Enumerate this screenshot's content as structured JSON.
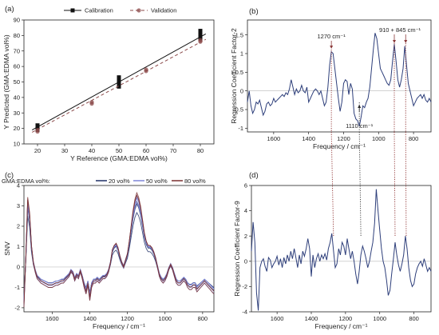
{
  "chart_data": [
    {
      "panel": "(a)",
      "type": "scatter",
      "xlabel": "Y Reference (GMA:EDMA vol%)",
      "ylabel": "Y Predicted (GMA:EDMA vol%)",
      "xlim": [
        15,
        85
      ],
      "ylim": [
        10,
        90
      ],
      "xticks": [
        20,
        30,
        40,
        50,
        60,
        70,
        80
      ],
      "yticks": [
        10,
        20,
        30,
        40,
        50,
        60,
        70,
        80,
        90
      ],
      "legend_position": "top-center",
      "series": [
        {
          "name": "Calibration",
          "color": "#111111",
          "marker": "square",
          "line": "solid",
          "fit": [
            [
              18,
              19
            ],
            [
              82,
              81
            ]
          ],
          "points": [
            [
              20,
              19
            ],
            [
              20,
              20
            ],
            [
              20,
              21
            ],
            [
              20,
              22
            ],
            [
              50,
              47
            ],
            [
              50,
              48
            ],
            [
              50,
              49
            ],
            [
              50,
              50
            ],
            [
              50,
              51
            ],
            [
              50,
              52
            ],
            [
              50,
              53
            ],
            [
              80,
              78
            ],
            [
              80,
              79
            ],
            [
              80,
              80
            ],
            [
              80,
              81
            ],
            [
              80,
              82
            ],
            [
              80,
              83
            ]
          ]
        },
        {
          "name": "Validation",
          "color": "#8b4a4a",
          "marker": "circle",
          "line": "dashed",
          "fit": [
            [
              18,
              17.5
            ],
            [
              82,
              77.5
            ]
          ],
          "points": [
            [
              20,
              18
            ],
            [
              20,
              19
            ],
            [
              40,
              36
            ],
            [
              40,
              37
            ],
            [
              60,
              57
            ],
            [
              60,
              58
            ],
            [
              80,
              76
            ],
            [
              80,
              77
            ]
          ]
        }
      ]
    },
    {
      "panel": "(b)",
      "type": "line",
      "xlabel": "Frequency / cm⁻¹",
      "ylabel": "Regression Coefficient Factor-2",
      "xlim": [
        1750,
        700
      ],
      "ylim": [
        -1.1,
        1.9
      ],
      "xticks": [
        1600,
        1400,
        1200,
        1000,
        800
      ],
      "yticks": [
        -1.0,
        -0.5,
        0.0,
        0.5,
        1.0,
        1.5
      ],
      "color": "#2d3e7a",
      "annotations": [
        {
          "text": "1270 cm⁻¹",
          "x": 1270
        },
        {
          "text": "910 + 845 cm⁻¹",
          "x": 878
        },
        {
          "text": "1110 cm⁻¹",
          "x": 1110
        }
      ],
      "x": [
        1750,
        1740,
        1730,
        1720,
        1710,
        1700,
        1690,
        1680,
        1670,
        1660,
        1650,
        1640,
        1630,
        1620,
        1610,
        1600,
        1590,
        1580,
        1570,
        1560,
        1550,
        1540,
        1530,
        1520,
        1510,
        1500,
        1490,
        1480,
        1470,
        1460,
        1450,
        1440,
        1430,
        1420,
        1410,
        1400,
        1390,
        1380,
        1370,
        1360,
        1350,
        1340,
        1330,
        1320,
        1310,
        1300,
        1290,
        1280,
        1270,
        1260,
        1250,
        1240,
        1230,
        1220,
        1210,
        1200,
        1190,
        1180,
        1170,
        1160,
        1150,
        1140,
        1130,
        1120,
        1110,
        1100,
        1090,
        1080,
        1070,
        1060,
        1050,
        1040,
        1030,
        1020,
        1010,
        1000,
        990,
        980,
        970,
        960,
        950,
        940,
        930,
        920,
        910,
        900,
        890,
        880,
        870,
        860,
        850,
        840,
        830,
        820,
        810,
        800,
        790,
        780,
        770,
        760,
        750,
        740,
        730,
        720,
        710,
        700
      ],
      "y": [
        -0.3,
        0.0,
        -0.4,
        -0.6,
        -0.5,
        -0.3,
        -0.35,
        -0.25,
        -0.45,
        -0.65,
        -0.55,
        -0.35,
        -0.3,
        -0.4,
        -0.35,
        -0.2,
        -0.3,
        -0.25,
        -0.2,
        -0.15,
        -0.1,
        -0.15,
        -0.05,
        -0.1,
        0.05,
        0.3,
        0.1,
        -0.1,
        0.05,
        -0.05,
        0.0,
        0.15,
        0.0,
        -0.05,
        0.1,
        -0.3,
        -0.2,
        -0.1,
        0.0,
        0.05,
        0.0,
        -0.1,
        0.0,
        -0.2,
        -0.4,
        -0.3,
        0.1,
        0.7,
        1.05,
        1.0,
        0.6,
        0.2,
        -0.2,
        -0.55,
        -0.3,
        0.2,
        0.3,
        0.25,
        -0.1,
        0.2,
        0.05,
        -0.6,
        -0.75,
        -0.8,
        -0.95,
        -0.7,
        -0.4,
        -0.45,
        -0.3,
        -0.2,
        0.1,
        0.6,
        1.1,
        1.55,
        1.4,
        1.0,
        0.6,
        0.5,
        0.4,
        0.3,
        0.2,
        0.15,
        0.3,
        0.8,
        1.25,
        0.8,
        0.3,
        0.1,
        0.3,
        0.6,
        1.2,
        0.7,
        0.2,
        0.0,
        -0.2,
        -0.4,
        -0.3,
        -0.2,
        -0.15,
        -0.1,
        -0.2,
        -0.1,
        -0.25,
        -0.3,
        -0.2,
        -0.3
      ]
    },
    {
      "panel": "(c)",
      "type": "line",
      "xlabel": "Frequency / cm⁻¹",
      "ylabel": "SNV",
      "xlim": [
        1750,
        740
      ],
      "ylim": [
        -2.2,
        4.0
      ],
      "xticks": [
        1600,
        1400,
        1200,
        1000,
        800
      ],
      "yticks": [
        -2,
        -1,
        0,
        1,
        2,
        3,
        4
      ],
      "legend_title": "GMA:EDMA vol%:",
      "legend_position": "top",
      "series": [
        {
          "name": "20 vol%",
          "color": "#1e2f66"
        },
        {
          "name": "50 vol%",
          "color": "#7d86d8"
        },
        {
          "name": "80 vol%",
          "color": "#7a2f2f"
        }
      ],
      "x": [
        1750,
        1740,
        1730,
        1720,
        1710,
        1700,
        1690,
        1680,
        1670,
        1660,
        1650,
        1640,
        1630,
        1620,
        1610,
        1600,
        1590,
        1580,
        1570,
        1560,
        1550,
        1540,
        1530,
        1520,
        1510,
        1500,
        1490,
        1480,
        1470,
        1460,
        1450,
        1440,
        1430,
        1420,
        1410,
        1400,
        1390,
        1380,
        1370,
        1360,
        1350,
        1340,
        1330,
        1320,
        1310,
        1300,
        1290,
        1280,
        1270,
        1260,
        1250,
        1240,
        1230,
        1220,
        1210,
        1200,
        1190,
        1180,
        1170,
        1160,
        1150,
        1140,
        1130,
        1120,
        1110,
        1100,
        1090,
        1080,
        1070,
        1060,
        1050,
        1040,
        1030,
        1020,
        1010,
        1000,
        990,
        980,
        970,
        960,
        950,
        940,
        930,
        920,
        910,
        900,
        890,
        880,
        870,
        860,
        850,
        840,
        830,
        820,
        810,
        800,
        790,
        780,
        770,
        760,
        750,
        740
      ],
      "y": [
        -1.8,
        0.5,
        3.2,
        2.5,
        1.0,
        0.2,
        -0.2,
        -0.5,
        -0.6,
        -0.7,
        -0.75,
        -0.8,
        -0.85,
        -0.9,
        -0.9,
        -0.9,
        -0.85,
        -0.8,
        -0.8,
        -0.75,
        -0.7,
        -0.7,
        -0.6,
        -0.5,
        -0.4,
        -0.2,
        -0.3,
        -0.6,
        -0.4,
        -0.5,
        -0.2,
        -0.5,
        -0.9,
        -1.2,
        -0.8,
        -1.5,
        -0.9,
        -0.7,
        -0.7,
        -0.6,
        -0.7,
        -0.6,
        -0.5,
        -0.5,
        -0.4,
        -0.2,
        0.2,
        0.8,
        1.0,
        1.1,
        0.9,
        0.5,
        0.2,
        0.0,
        0.3,
        0.6,
        1.2,
        1.9,
        2.6,
        3.1,
        3.4,
        3.2,
        2.8,
        2.2,
        1.6,
        1.2,
        1.0,
        1.0,
        0.9,
        0.7,
        0.4,
        0.0,
        -0.4,
        -0.6,
        -0.7,
        -0.6,
        -0.4,
        -0.1,
        0.1,
        -0.1,
        -0.4,
        -0.7,
        -0.8,
        -0.8,
        -0.7,
        -0.6,
        -0.7,
        -0.9,
        -1.0,
        -1.0,
        -0.9,
        -0.9,
        -1.1,
        -1.0,
        -0.9,
        -0.8,
        -0.7,
        -0.8,
        -0.9,
        -1.0,
        -1.1,
        -1.2
      ]
    },
    {
      "panel": "(d)",
      "type": "line",
      "xlabel": "Frequency / cm⁻¹",
      "ylabel": "Regression Coefficient Factor-9",
      "xlim": [
        1750,
        700
      ],
      "ylim": [
        -4,
        6
      ],
      "xticks": [
        1600,
        1400,
        1200,
        1000,
        800
      ],
      "yticks": [
        -4,
        -2,
        0,
        2,
        4,
        6
      ],
      "color": "#2d3e7a",
      "x": [
        1750,
        1740,
        1730,
        1720,
        1710,
        1700,
        1690,
        1680,
        1670,
        1660,
        1650,
        1640,
        1630,
        1620,
        1610,
        1600,
        1590,
        1580,
        1570,
        1560,
        1550,
        1540,
        1530,
        1520,
        1510,
        1500,
        1490,
        1480,
        1470,
        1460,
        1450,
        1440,
        1430,
        1420,
        1410,
        1400,
        1390,
        1380,
        1370,
        1360,
        1350,
        1340,
        1330,
        1320,
        1310,
        1300,
        1290,
        1280,
        1270,
        1260,
        1250,
        1240,
        1230,
        1220,
        1210,
        1200,
        1190,
        1180,
        1170,
        1160,
        1150,
        1140,
        1130,
        1120,
        1110,
        1100,
        1090,
        1080,
        1070,
        1060,
        1050,
        1040,
        1030,
        1020,
        1010,
        1000,
        990,
        980,
        970,
        960,
        950,
        940,
        930,
        920,
        910,
        900,
        890,
        880,
        870,
        860,
        850,
        840,
        830,
        820,
        810,
        800,
        790,
        780,
        770,
        760,
        750,
        740,
        730,
        720,
        710,
        700
      ],
      "y": [
        0.8,
        3.1,
        1.5,
        -2.5,
        -3.9,
        -0.5,
        0.0,
        0.2,
        -0.4,
        -0.8,
        0.3,
        0.1,
        -0.5,
        -0.2,
        0.0,
        0.4,
        -0.3,
        0.2,
        -0.5,
        0.3,
        -0.2,
        0.5,
        0.0,
        0.8,
        0.2,
        1.0,
        0.3,
        -0.5,
        0.5,
        -0.2,
        0.8,
        0.4,
        1.0,
        1.8,
        1.0,
        -1.2,
        0.5,
        -0.5,
        0.2,
        0.6,
        0.0,
        0.5,
        0.2,
        0.6,
        0.1,
        1.0,
        1.5,
        2.2,
        0.8,
        -0.5,
        -0.2,
        1.0,
        0.5,
        1.5,
        1.2,
        0.5,
        1.8,
        1.0,
        0.2,
        0.8,
        0.0,
        -1.0,
        -1.8,
        -0.8,
        0.5,
        1.2,
        0.8,
        0.2,
        -0.5,
        0.0,
        0.8,
        1.5,
        3.0,
        5.7,
        4.0,
        2.5,
        1.0,
        0.0,
        -0.5,
        -1.5,
        -2.7,
        -2.3,
        -1.0,
        0.2,
        1.5,
        0.5,
        -0.3,
        -0.8,
        -0.2,
        0.5,
        2.0,
        1.0,
        -0.5,
        -1.5,
        -2.0,
        -1.8,
        -1.0,
        -0.5,
        -0.2,
        0.0,
        -0.4,
        0.2,
        -0.3,
        -0.8,
        -0.5,
        -0.8
      ]
    }
  ]
}
